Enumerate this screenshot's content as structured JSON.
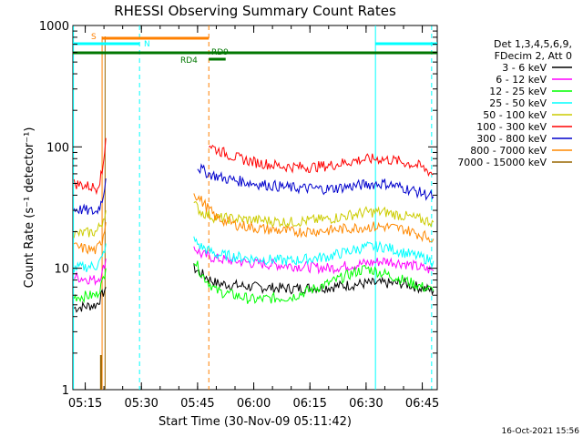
{
  "chart_data": {
    "type": "line",
    "title": "RHESSI Observing Summary Count Rates",
    "xlabel": "Start Time (30-Nov-09 05:11:42)",
    "ylabel": "Count Rate (s⁻¹ detector⁻¹)",
    "yscale": "log",
    "ylim": [
      1,
      1000
    ],
    "xlim_minutes": [
      311.7,
      409.0
    ],
    "x_ticks": [
      "05:15",
      "05:30",
      "05:45",
      "06:00",
      "06:15",
      "06:30",
      "06:45"
    ],
    "y_ticks": [
      "1",
      "10",
      "100",
      "1000"
    ],
    "legend": {
      "header": [
        "Det 1,3,4,5,6,9,",
        "FDecim 2, Att 0"
      ],
      "placement": "top-right outside"
    },
    "series": [
      {
        "name": "3 - 6 keV",
        "color": "#000000",
        "points": [
          [
            312,
            4.7
          ],
          [
            318,
            5.0
          ],
          [
            319.5,
            6
          ],
          [
            320.5,
            7
          ],
          [
            343,
            null
          ],
          [
            344,
            10
          ],
          [
            346,
            9
          ],
          [
            350,
            7.5
          ],
          [
            360,
            7
          ],
          [
            370,
            6.8
          ],
          [
            380,
            7
          ],
          [
            390,
            7.5
          ],
          [
            400,
            7.5
          ],
          [
            408,
            6.5
          ]
        ]
      },
      {
        "name": "6 - 12 keV",
        "color": "#ff00ff",
        "points": [
          [
            312,
            8.5
          ],
          [
            318,
            8.0
          ],
          [
            319.5,
            9
          ],
          [
            320.5,
            12
          ],
          [
            343,
            null
          ],
          [
            344,
            15
          ],
          [
            346,
            13
          ],
          [
            350,
            12
          ],
          [
            360,
            11
          ],
          [
            370,
            10.5
          ],
          [
            380,
            10
          ],
          [
            390,
            11
          ],
          [
            395,
            11.5
          ],
          [
            400,
            11
          ],
          [
            408,
            9.5
          ]
        ]
      },
      {
        "name": "12 - 25 keV",
        "color": "#00ff00",
        "points": [
          [
            312,
            5.8
          ],
          [
            318,
            6.0
          ],
          [
            319.5,
            7.5
          ],
          [
            320.5,
            10
          ],
          [
            343,
            null
          ],
          [
            344,
            12
          ],
          [
            346,
            9
          ],
          [
            350,
            6.5
          ],
          [
            360,
            5.5
          ],
          [
            370,
            5.8
          ],
          [
            380,
            7.5
          ],
          [
            386,
            9
          ],
          [
            390,
            10
          ],
          [
            395,
            9
          ],
          [
            400,
            8
          ],
          [
            408,
            6.5
          ]
        ]
      },
      {
        "name": "25 - 50 keV",
        "color": "#00ffff",
        "points": [
          [
            312,
            10
          ],
          [
            318,
            10.5
          ],
          [
            319.5,
            12
          ],
          [
            320.5,
            16
          ],
          [
            343,
            null
          ],
          [
            344,
            17
          ],
          [
            346,
            15
          ],
          [
            350,
            13
          ],
          [
            360,
            12
          ],
          [
            370,
            11.5
          ],
          [
            380,
            12.5
          ],
          [
            390,
            15
          ],
          [
            395,
            15
          ],
          [
            400,
            13.5
          ],
          [
            408,
            11.5
          ]
        ]
      },
      {
        "name": "50 - 100 keV",
        "color": "#cccc00",
        "points": [
          [
            312,
            19
          ],
          [
            318,
            20
          ],
          [
            319.5,
            24
          ],
          [
            320.5,
            30
          ],
          [
            343,
            null
          ],
          [
            344,
            34
          ],
          [
            346,
            29
          ],
          [
            350,
            26
          ],
          [
            360,
            25
          ],
          [
            370,
            24
          ],
          [
            380,
            25.5
          ],
          [
            390,
            29
          ],
          [
            395,
            29
          ],
          [
            400,
            27
          ],
          [
            408,
            24
          ]
        ]
      },
      {
        "name": "100 - 300 keV",
        "color": "#ff0000",
        "points": [
          [
            312,
            50
          ],
          [
            318,
            46
          ],
          [
            319.5,
            60
          ],
          [
            320.5,
            118
          ],
          [
            347,
            null
          ],
          [
            348,
            105
          ],
          [
            350,
            95
          ],
          [
            355,
            82
          ],
          [
            360,
            75
          ],
          [
            368,
            69
          ],
          [
            375,
            68
          ],
          [
            380,
            70
          ],
          [
            388,
            78
          ],
          [
            393,
            80
          ],
          [
            398,
            77
          ],
          [
            404,
            70
          ],
          [
            408,
            60
          ]
        ]
      },
      {
        "name": "300 - 800 keV",
        "color": "#0000cc",
        "points": [
          [
            312,
            31
          ],
          [
            318,
            29
          ],
          [
            319.5,
            36
          ],
          [
            320.5,
            55
          ],
          [
            344,
            null
          ],
          [
            345,
            68
          ],
          [
            348,
            60
          ],
          [
            352,
            55
          ],
          [
            360,
            50
          ],
          [
            370,
            46
          ],
          [
            380,
            45
          ],
          [
            390,
            49
          ],
          [
            395,
            50
          ],
          [
            400,
            46
          ],
          [
            408,
            39
          ]
        ]
      },
      {
        "name": "800 - 7000 keV",
        "color": "#ff8800",
        "points": [
          [
            312,
            15
          ],
          [
            318,
            14
          ],
          [
            319.5,
            17
          ],
          [
            320.5,
            24
          ],
          [
            343,
            null
          ],
          [
            344,
            42
          ],
          [
            346,
            36
          ],
          [
            350,
            26
          ],
          [
            355,
            23
          ],
          [
            360,
            21.5
          ],
          [
            370,
            20
          ],
          [
            380,
            20.5
          ],
          [
            390,
            22
          ],
          [
            395,
            22
          ],
          [
            400,
            21
          ],
          [
            408,
            17.5
          ]
        ]
      },
      {
        "name": "7000 - 15000 keV",
        "color": "#996600",
        "points": []
      }
    ],
    "state_bars": [
      {
        "label": "S",
        "color": "#ff8000",
        "from": 319.5,
        "to": 348
      },
      {
        "label": "N",
        "color": "#00ffff",
        "from": 311.7,
        "to": 329.5
      },
      {
        "label": "N",
        "color": "#00ffff",
        "from": 392.5,
        "to": 409.0
      },
      {
        "label": "RD9",
        "color": "#007700",
        "from": 311.7,
        "to": 409.0
      },
      {
        "label": "RD4",
        "color": "#007700",
        "from": 348,
        "to": 352.5
      }
    ],
    "state_labels": [
      "S",
      "N",
      "RD9",
      "RD4"
    ]
  },
  "footer": {
    "timestamp": "16-Oct-2021 15:56"
  }
}
